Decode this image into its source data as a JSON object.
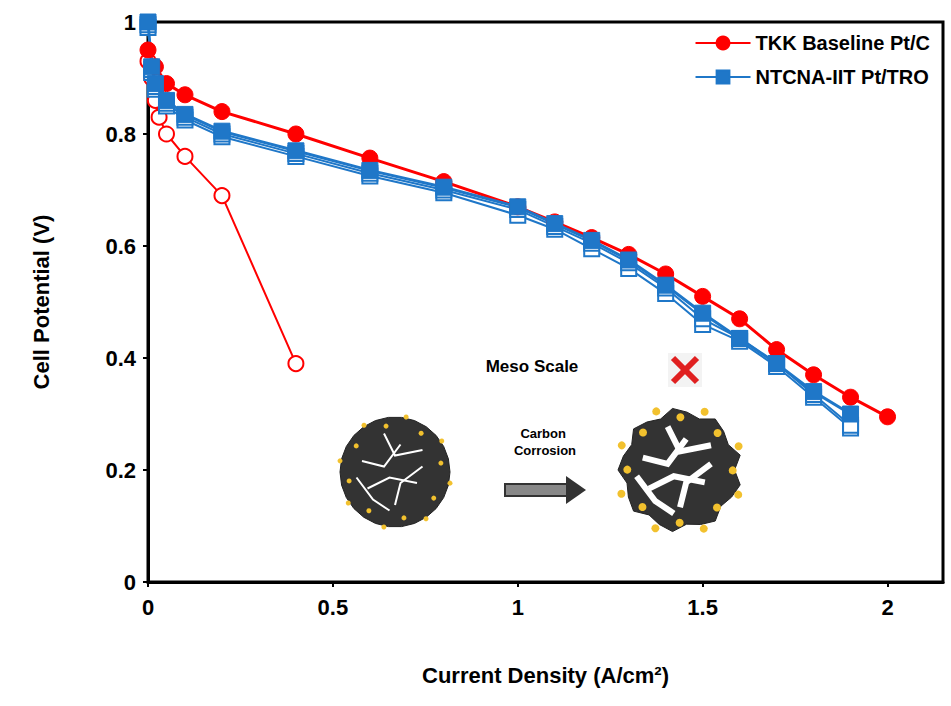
{
  "chart_data": {
    "type": "line",
    "x_label": "Current Density (A/cm²)",
    "y_label": "Cell Potential (V)",
    "xlim": [
      0,
      2.15
    ],
    "xticks": [
      0,
      0.5,
      1,
      1.5,
      2
    ],
    "ylim": [
      0,
      1
    ],
    "yticks": [
      0,
      0.2,
      0.4,
      0.6,
      0.8,
      1
    ],
    "grid": false,
    "legend": "top-right",
    "annotations": [
      "Meso Scale",
      "Carbon Corrosion"
    ],
    "series": [
      {
        "name": "TKK Baseline Pt/C",
        "color": "#ff0000",
        "marker": "circle",
        "line_style": "solid",
        "x": [
          0,
          0.02,
          0.05,
          0.1,
          0.2,
          0.4,
          0.6,
          0.8,
          1.0,
          1.1,
          1.2,
          1.3,
          1.4,
          1.5,
          1.6,
          1.7,
          1.8,
          1.9,
          2.0
        ],
        "values": [
          0.95,
          0.92,
          0.89,
          0.87,
          0.84,
          0.8,
          0.757,
          0.715,
          0.67,
          0.643,
          0.615,
          0.585,
          0.55,
          0.51,
          0.47,
          0.415,
          0.37,
          0.33,
          0.295
        ]
      },
      {
        "name": "NTCNA-IIT Pt/TRO",
        "color": "#1f77c8",
        "marker": "square",
        "line_style": "solid",
        "x": [
          0,
          0.01,
          0.02,
          0.05,
          0.1,
          0.2,
          0.4,
          0.6,
          0.8,
          1.0,
          1.1,
          1.2,
          1.3,
          1.4,
          1.5,
          1.6,
          1.7,
          1.8,
          1.9
        ],
        "values": [
          1.0,
          0.92,
          0.89,
          0.86,
          0.835,
          0.805,
          0.77,
          0.735,
          0.705,
          0.67,
          0.64,
          0.61,
          0.575,
          0.53,
          0.48,
          0.435,
          0.39,
          0.34,
          0.3
        ]
      },
      {
        "name": "TKK Baseline Pt/C",
        "color": "#ff0000",
        "marker": "open-circle",
        "line_style": "solid",
        "x": [
          0,
          0.01,
          0.02,
          0.03,
          0.05,
          0.1,
          0.2,
          0.4
        ],
        "values": [
          0.93,
          0.9,
          0.86,
          0.83,
          0.8,
          0.76,
          0.69,
          0.39
        ]
      },
      {
        "name": "NTCNA-IIT Pt/TRO",
        "color": "#1f77c8",
        "marker": "open-square",
        "line_style": "solid",
        "x": [
          0,
          0.01,
          0.02,
          0.05,
          0.1,
          0.2,
          0.4,
          0.6,
          0.8,
          1.0,
          1.1,
          1.2,
          1.3,
          1.4,
          1.5,
          1.6,
          1.7,
          1.8,
          1.9
        ],
        "values": [
          0.99,
          0.91,
          0.88,
          0.85,
          0.825,
          0.795,
          0.76,
          0.725,
          0.695,
          0.655,
          0.63,
          0.595,
          0.56,
          0.515,
          0.46,
          0.43,
          0.385,
          0.33,
          0.275
        ]
      },
      {
        "name": "NTCNA-IIT Pt/TRO",
        "color": "#1f77c8",
        "marker": "open-square",
        "line_style": "solid",
        "x": [
          0,
          0.01,
          0.02,
          0.05,
          0.1,
          0.2,
          0.4,
          0.6,
          0.8,
          1.0,
          1.1,
          1.2,
          1.3,
          1.4,
          1.5,
          1.6,
          1.7,
          1.8,
          1.9
        ],
        "values": [
          0.995,
          0.915,
          0.885,
          0.855,
          0.83,
          0.8,
          0.765,
          0.73,
          0.7,
          0.665,
          0.635,
          0.605,
          0.57,
          0.525,
          0.47,
          0.435,
          0.39,
          0.335,
          0.28
        ]
      }
    ]
  }
}
